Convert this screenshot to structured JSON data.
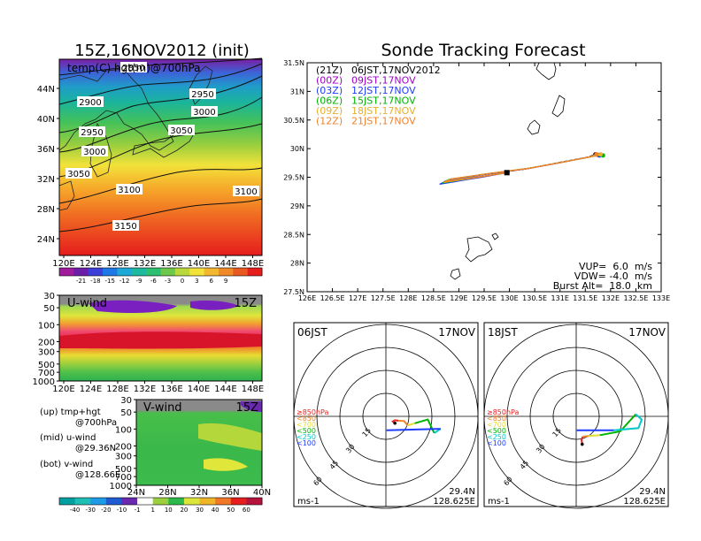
{
  "left_title": "15Z,16NOV2012 (init)",
  "right_title": "Sonde Tracking Forecast",
  "map700": {
    "label": "temp(C) hgt(m)@700hPa",
    "lat_ticks": [
      "44N",
      "40N",
      "36N",
      "32N",
      "28N",
      "24N"
    ],
    "lon_ticks": [
      "120E",
      "124E",
      "128E",
      "132E",
      "136E",
      "140E",
      "144E",
      "148E"
    ],
    "contour_labels": [
      "2850",
      "2900",
      "2950",
      "2950",
      "3000",
      "3000",
      "3050",
      "3050",
      "3100",
      "3100",
      "3150"
    ],
    "temp_colorbar": [
      "-21",
      "-18",
      "-15",
      "-12",
      "-9",
      "-6",
      "-3",
      "0",
      "3",
      "6",
      "9"
    ]
  },
  "uwind": {
    "label": "U-wind",
    "time": "15Z",
    "p_ticks": [
      "30",
      "50",
      "100",
      "200",
      "300",
      "500",
      "700",
      "1000"
    ],
    "lon_ticks": [
      "120E",
      "124E",
      "128E",
      "132E",
      "136E",
      "140E",
      "144E",
      "148E"
    ]
  },
  "vwind": {
    "label": "V-wind",
    "time": "15Z",
    "p_ticks": [
      "30",
      "50",
      "100",
      "200",
      "300",
      "500",
      "700",
      "1000"
    ],
    "lat_ticks": [
      "24N",
      "28N",
      "32N",
      "36N",
      "40N"
    ],
    "wind_colorbar": [
      "-40",
      "-30",
      "-20",
      "-10",
      "-1",
      "1",
      "10",
      "20",
      "30",
      "40",
      "50",
      "60"
    ]
  },
  "legend_notes": [
    {
      "a": "(up) tmp+hgt",
      "b": "@700hPa"
    },
    {
      "a": "(mid) u-wind",
      "b": "@29.36N"
    },
    {
      "a": "(bot) v-wind",
      "b": "@128.66E"
    }
  ],
  "track": {
    "lat_ticks": [
      "31.5N",
      "31N",
      "30.5N",
      "30N",
      "29.5N",
      "29N",
      "28.5N",
      "28N",
      "27.5N"
    ],
    "lon_ticks": [
      "126E",
      "126.5E",
      "127E",
      "127.5E",
      "128E",
      "128.5E",
      "129E",
      "129.5E",
      "130E",
      "130.5E",
      "131E",
      "131.5E",
      "132E",
      "132.5E",
      "133E"
    ],
    "legend": [
      {
        "code": "(21Z)",
        "time": "06JST,17NOV2012",
        "color": "#000000"
      },
      {
        "code": "(00Z)",
        "time": "09JST,17NOV",
        "color": "#a000c8"
      },
      {
        "code": "(03Z)",
        "time": "12JST,17NOV",
        "color": "#1e3cff"
      },
      {
        "code": "(06Z)",
        "time": "15JST,17NOV",
        "color": "#00b400"
      },
      {
        "code": "(09Z)",
        "time": "18JST,17NOV",
        "color": "#e6af2d"
      },
      {
        "code": "(12Z)",
        "time": "21JST,17NOV",
        "color": "#f08228"
      }
    ],
    "vup": "VUP=  6.0  m/s",
    "vdw": "VDW= -4.0  m/s",
    "burst": "Burst Alt=  18.0  km"
  },
  "hodo_left": {
    "time": "06JST",
    "date": "17NOV",
    "lat": "29.4N",
    "lon": "128.625E",
    "unit": "ms-1"
  },
  "hodo_right": {
    "time": "18JST",
    "date": "17NOV",
    "lat": "29.4N",
    "lon": "128.625E",
    "unit": "ms-1"
  },
  "hodo_rings": [
    "15",
    "30",
    "45",
    "60"
  ],
  "hodo_levels": [
    {
      "label": "≥850hPa",
      "color": "#e61e1e"
    },
    {
      "label": "<850",
      "color": "#f08228"
    },
    {
      "label": "<700",
      "color": "#e6dc32"
    },
    {
      "label": "<500",
      "color": "#00b400"
    },
    {
      "label": "<250",
      "color": "#00c8c8"
    },
    {
      "label": "<100",
      "color": "#1e3cff"
    }
  ],
  "chart_data": [
    {
      "type": "line",
      "title": "Sonde Tracking Forecast",
      "xlim": [
        126,
        133
      ],
      "ylim": [
        27.5,
        31.5
      ],
      "launch": [
        129.95,
        29.58
      ],
      "series": [
        {
          "name": "(21Z) 06JST,17NOV2012",
          "color": "#000000",
          "x": [
            129.95,
            129.5,
            129.0,
            128.7,
            128.85,
            129.5,
            130.3,
            131.0,
            131.55,
            131.7
          ],
          "y": [
            29.58,
            29.52,
            29.46,
            29.42,
            29.47,
            29.55,
            29.64,
            29.76,
            29.85,
            29.9
          ]
        },
        {
          "name": "(00Z) 09JST,17NOV",
          "color": "#a000c8",
          "x": [
            129.95,
            129.45,
            128.95,
            128.65,
            128.8,
            129.5,
            130.35,
            131.1,
            131.6,
            131.75
          ],
          "y": [
            29.58,
            29.5,
            29.43,
            29.39,
            29.45,
            29.55,
            29.65,
            29.77,
            29.86,
            29.89
          ]
        },
        {
          "name": "(03Z) 12JST,17NOV",
          "color": "#1e3cff",
          "x": [
            129.95,
            129.4,
            128.9,
            128.62,
            128.78,
            129.5,
            130.35,
            131.1,
            131.62,
            131.78
          ],
          "y": [
            29.58,
            29.5,
            29.42,
            29.38,
            29.44,
            29.55,
            29.65,
            29.77,
            29.86,
            29.88
          ]
        },
        {
          "name": "(06Z) 15JST,17NOV",
          "color": "#00b400",
          "x": [
            129.95,
            129.45,
            128.95,
            128.68,
            128.8,
            129.55,
            130.4,
            131.15,
            131.7,
            131.85
          ],
          "y": [
            29.58,
            29.51,
            29.44,
            29.4,
            29.46,
            29.56,
            29.66,
            29.78,
            29.87,
            29.88
          ]
        },
        {
          "name": "(09Z) 18JST,17NOV",
          "color": "#e6af2d",
          "x": [
            129.95,
            129.5,
            129.0,
            128.7,
            128.82,
            129.55,
            130.4,
            131.15,
            131.7,
            131.8
          ],
          "y": [
            29.58,
            29.52,
            29.45,
            29.41,
            29.46,
            29.56,
            29.66,
            29.78,
            29.87,
            29.9
          ]
        },
        {
          "name": "(12Z) 21JST,17NOV",
          "color": "#f08228",
          "x": [
            129.95,
            129.5,
            129.0,
            128.72,
            128.85,
            129.55,
            130.35,
            131.1,
            131.6,
            131.72
          ],
          "y": [
            29.58,
            29.52,
            29.46,
            29.42,
            29.47,
            29.56,
            29.65,
            29.77,
            29.86,
            29.9
          ]
        }
      ]
    },
    {
      "type": "line",
      "title": "06JST 17NOV hodograph",
      "rings": [
        15,
        30,
        45,
        60
      ],
      "series": [
        {
          "level": "≥850hPa",
          "color": "#e61e1e",
          "u": [
            4.2,
            3.2,
            4.2,
            5.8
          ],
          "v": [
            -3.2,
            -2.4,
            -1.8,
            -2.0
          ]
        },
        {
          "level": "<850",
          "color": "#f08228",
          "u": [
            5.8,
            8.5,
            10.2
          ],
          "v": [
            -2.0,
            -2.2,
            -4.2
          ]
        },
        {
          "level": "<700",
          "color": "#e6dc32",
          "u": [
            10.2,
            13.5
          ],
          "v": [
            -4.2,
            -3.2
          ]
        },
        {
          "level": "<500",
          "color": "#00b400",
          "u": [
            13.5,
            19.5,
            22.5
          ],
          "v": [
            -3.2,
            -1.5,
            -7.8
          ]
        },
        {
          "level": "<250",
          "color": "#00c8c8",
          "u": [
            22.5,
            25.5
          ],
          "v": [
            -7.8,
            -5.8
          ]
        },
        {
          "level": "<100",
          "color": "#1e3cff",
          "u": [
            25.5,
            0.3
          ],
          "v": [
            -5.8,
            -6.5
          ]
        }
      ]
    },
    {
      "type": "line",
      "title": "18JST 17NOV hodograph",
      "rings": [
        15,
        30,
        45,
        60
      ],
      "series": [
        {
          "level": "≥850hPa",
          "color": "#e61e1e",
          "u": [
            2.8,
            2.5,
            3.0
          ],
          "v": [
            -13.0,
            -11.0,
            -9.5
          ]
        },
        {
          "level": "<850",
          "color": "#f08228",
          "u": [
            3.0,
            5.6
          ],
          "v": [
            -9.5,
            -9.2
          ]
        },
        {
          "level": "<700",
          "color": "#e6dc32",
          "u": [
            5.6,
            11.0
          ],
          "v": [
            -9.2,
            -8.8
          ]
        },
        {
          "level": "<500",
          "color": "#00b400",
          "u": [
            11.0,
            20.5,
            27.8
          ],
          "v": [
            -8.8,
            -7.0,
            1.0
          ]
        },
        {
          "level": "<250",
          "color": "#00c8c8",
          "u": [
            27.8,
            30.5,
            29.0,
            17.5
          ],
          "v": [
            1.0,
            -1.5,
            -5.5,
            -6.5
          ]
        },
        {
          "level": "<100",
          "color": "#1e3cff",
          "u": [
            17.5,
            0.3
          ],
          "v": [
            -6.5,
            -6.5
          ]
        }
      ]
    }
  ]
}
